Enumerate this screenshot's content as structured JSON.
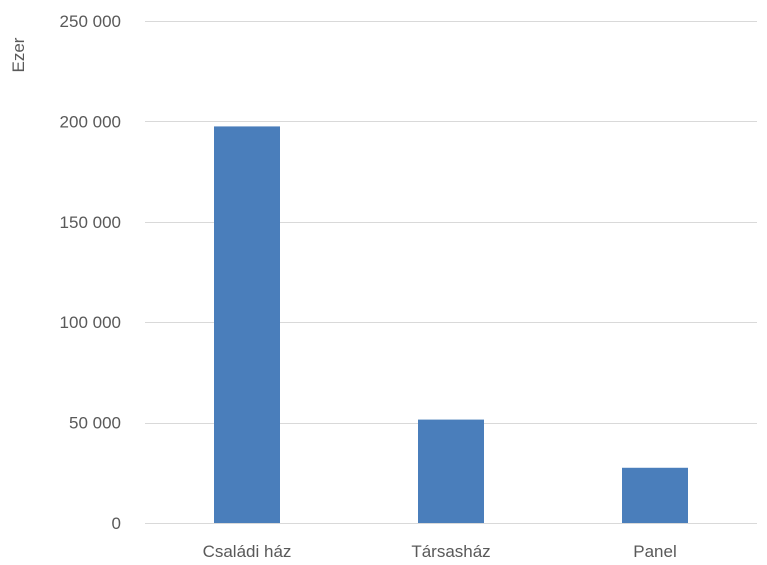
{
  "chart_data": {
    "type": "bar",
    "categories": [
      "Családi ház",
      "Társasház",
      "Panel"
    ],
    "series": [
      {
        "values": [
          197500,
          51500,
          27500
        ],
        "color": "#4a7ebb"
      }
    ],
    "ylabel": "Ezer",
    "xlabel": "",
    "ylim": [
      0,
      250000
    ],
    "yticks": [
      0,
      50000,
      100000,
      150000,
      200000,
      250000
    ],
    "ytick_labels": [
      "0",
      "50 000",
      "100 000",
      "150 000",
      "200 000",
      "250 000"
    ],
    "grid": true,
    "legend": "none"
  }
}
